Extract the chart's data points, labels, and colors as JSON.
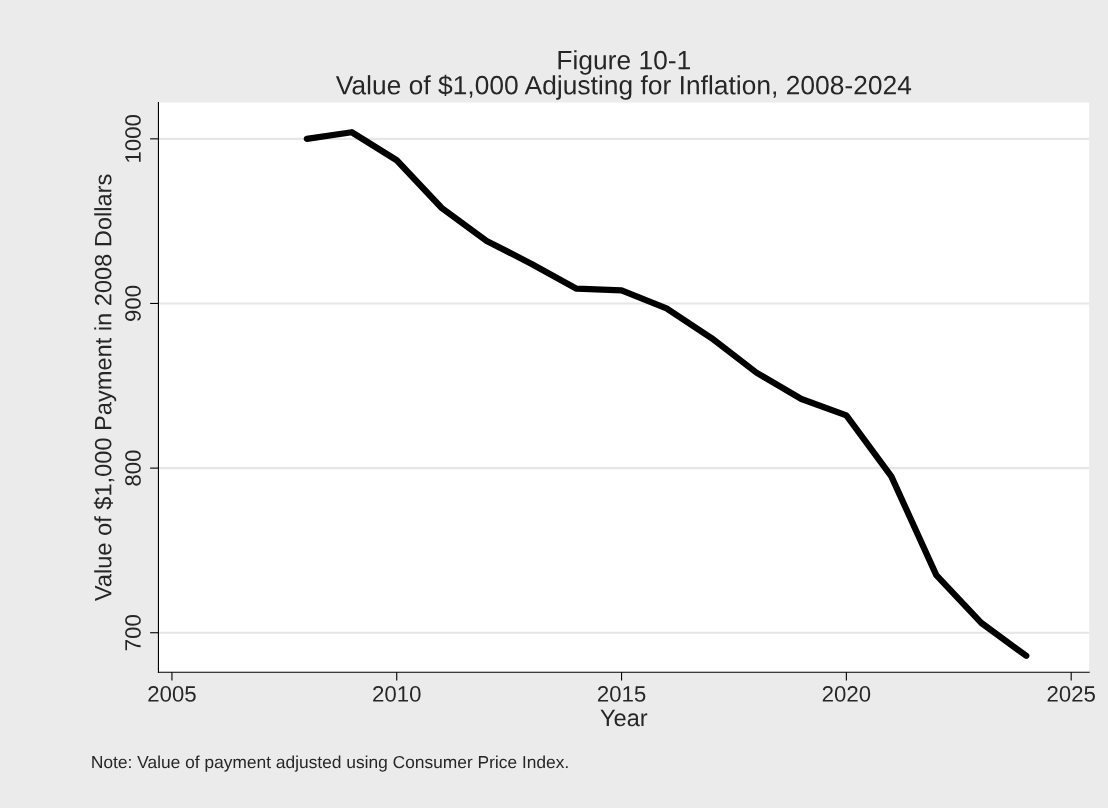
{
  "chart_data": {
    "type": "line",
    "title": "Figure 10-1\nValue of $1,000 Adjusting for Inflation, 2008-2024",
    "xlabel": "Year",
    "ylabel": "Value of $1,000 Payment in 2008 Dollars",
    "x": [
      2008,
      2009,
      2010,
      2011,
      2012,
      2013,
      2014,
      2015,
      2016,
      2017,
      2018,
      2019,
      2020,
      2021,
      2022,
      2023,
      2024
    ],
    "series": [
      {
        "color": "#000000",
        "values": [
          1000,
          1004,
          987,
          958,
          938,
          924,
          909,
          908,
          897,
          879,
          858,
          842,
          832,
          795,
          735,
          706,
          686
        ]
      }
    ],
    "xlim": [
      2004.7,
      2025.4
    ],
    "xticks": [
      2005,
      2010,
      2015,
      2020,
      2025
    ],
    "ylim": [
      676,
      1022
    ],
    "yticks": [
      700,
      800,
      900,
      1000
    ],
    "grid": "y",
    "line_style": "solid",
    "marker": "none",
    "annotations": [
      "Note: Value of payment adjusted using Consumer Price Index."
    ]
  }
}
